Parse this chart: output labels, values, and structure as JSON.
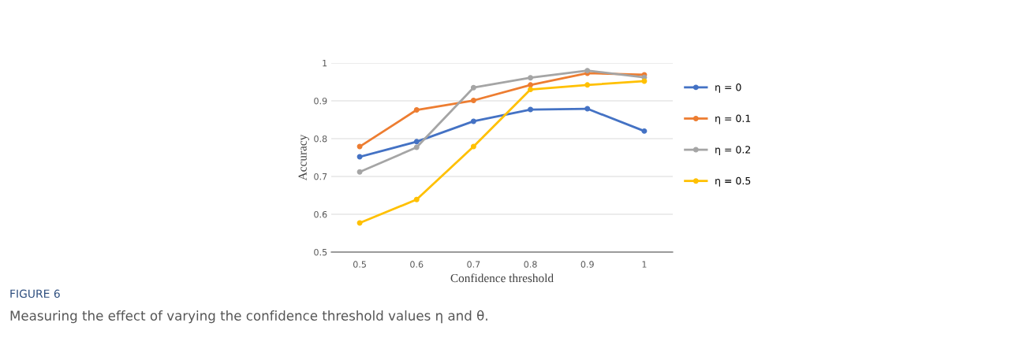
{
  "chart_data": {
    "type": "line",
    "xlabel": "Confidence threshold",
    "ylabel": "Accuracy",
    "categories": [
      "0.5",
      "0.6",
      "0.7",
      "0.8",
      "0.9",
      "1"
    ],
    "series": [
      {
        "name": "η = 0",
        "color": "#4472c4",
        "values": [
          0.752,
          0.792,
          0.846,
          0.877,
          0.879,
          0.82
        ]
      },
      {
        "name": "η = 0.1",
        "color": "#ed7d31",
        "values": [
          0.779,
          0.876,
          0.901,
          0.942,
          0.973,
          0.969
        ]
      },
      {
        "name": "η = 0.2",
        "color": "#a5a5a5",
        "values": [
          0.712,
          0.777,
          0.935,
          0.961,
          0.98,
          0.962
        ]
      },
      {
        "name": "η = 0.5",
        "color": "#ffc000",
        "values": [
          0.577,
          0.639,
          0.779,
          0.93,
          0.942,
          0.952
        ]
      }
    ],
    "ylim": [
      0.5,
      1.0
    ],
    "yticks": [
      0.5,
      0.6,
      0.7,
      0.8,
      0.9,
      1
    ],
    "grid": "y",
    "legend": "right",
    "marker": "circle",
    "line_style": "solid",
    "annotations": [
      "FIGURE 6",
      "Measuring the effect of varying the confidence threshold values η and θ."
    ]
  }
}
